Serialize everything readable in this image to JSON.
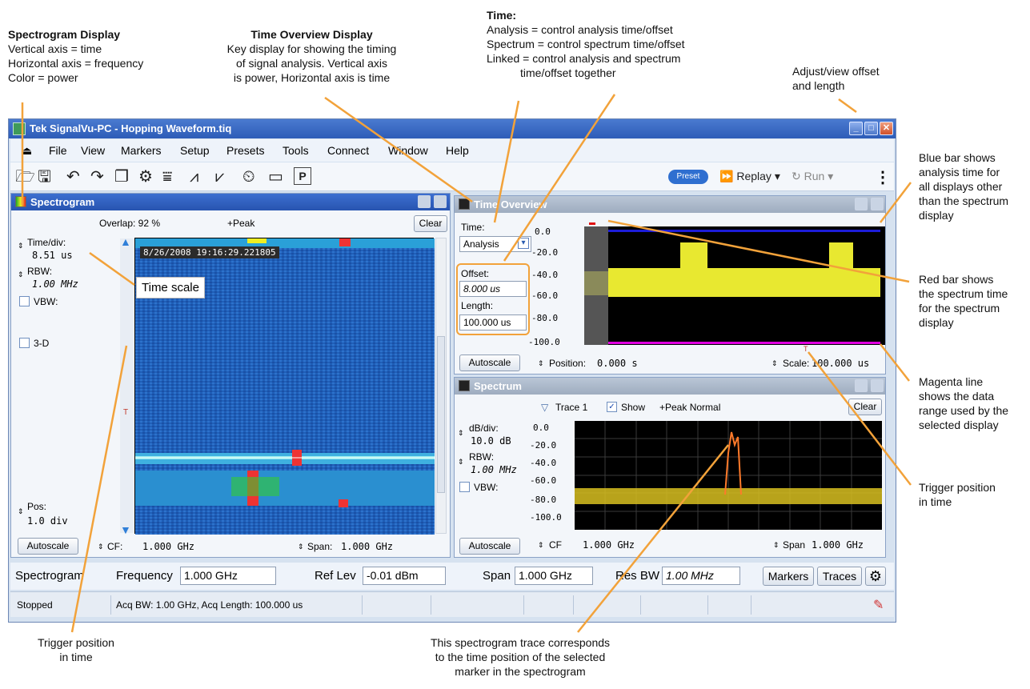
{
  "annotations": {
    "spectrogram_display": {
      "title": "Spectrogram Display",
      "lines": [
        "Vertical axis = time",
        "Horizontal axis = frequency",
        "Color = power"
      ]
    },
    "time_overview_display": {
      "title": "Time Overview Display",
      "lines": [
        "Key display for showing the timing",
        "of signal analysis. Vertical axis",
        "is power, Horizontal axis is time"
      ]
    },
    "time": {
      "title": "Time:",
      "lines": [
        "Analysis = control analysis time/offset",
        "Spectrum = control spectrum time/offset",
        "Linked = control analysis and spectrum"
      ],
      "last_line": "time/offset together"
    },
    "adjust_offset": {
      "lines": [
        "Adjust/view offset",
        "and length"
      ]
    },
    "blue_bar": {
      "lines": [
        "Blue bar shows",
        "analysis time for",
        "all displays other",
        "than the spectrum",
        "display"
      ]
    },
    "red_bar": {
      "lines": [
        "Red bar shows",
        "the spectrum time",
        "for the spectrum",
        "display"
      ]
    },
    "magenta_line": {
      "lines": [
        "Magenta line",
        "shows the data",
        "range used by the",
        "selected display"
      ]
    },
    "trigger_right": {
      "lines": [
        "Trigger position",
        "in time"
      ]
    },
    "trigger_left": {
      "lines": [
        "Trigger position",
        "in time"
      ]
    },
    "spectrogram_trace": {
      "lines": [
        "This spectrogram trace corresponds",
        "to the time position of the selected",
        "marker in the spectrogram"
      ]
    }
  },
  "window": {
    "title": "Tek SignalVu-PC - Hopping Waveform.tiq"
  },
  "menu": [
    "File",
    "View",
    "Markers",
    "Setup",
    "Presets",
    "Tools",
    "Connect",
    "Window",
    "Help"
  ],
  "toolbar": {
    "preset": "Preset",
    "replay": "Replay",
    "run": "Run"
  },
  "spectrogram": {
    "title": "Spectrogram",
    "overlap": "Overlap: 92 %",
    "detection": "+Peak",
    "clear": "Clear",
    "timestamp": "8/26/2008 19:16:29.221805",
    "time_div_label": "Time/div:",
    "time_div_value": "8.51 us",
    "rbw_label": "RBW:",
    "rbw_value": "1.00 MHz",
    "vbw_label": "VBW:",
    "threed_label": "3-D",
    "time_scale": "Time scale",
    "pos_label": "Pos:",
    "pos_value": "1.0 div",
    "autoscale": "Autoscale",
    "cf_label": "CF:",
    "cf_value": "1.000 GHz",
    "span_label": "Span:",
    "span_value": "1.000 GHz",
    "trigger_marker": "T"
  },
  "time_overview": {
    "title": "Time Overview",
    "time_label": "Time:",
    "time_select": "Analysis",
    "offset_label": "Offset:",
    "offset_value": "8.000 us",
    "length_label": "Length:",
    "length_value": "100.000 us",
    "autoscale": "Autoscale",
    "position_label": "Position:",
    "position_value": "0.000 s",
    "scale_label": "Scale:",
    "scale_value": "100.000 us",
    "y_ticks": [
      "0.0",
      "-20.0",
      "-40.0",
      "-60.0",
      "-80.0",
      "-100.0"
    ],
    "trigger_marker": "T",
    "colors": {
      "blue_bar": "#1c1cd8",
      "red_bar": "#e01010",
      "magenta_line": "#e000e0",
      "trace": "#ffff33"
    }
  },
  "spectrum": {
    "title": "Spectrum",
    "trace": "Trace 1",
    "show": "Show",
    "detection": "+Peak Normal",
    "clear": "Clear",
    "db_div_label": "dB/div:",
    "db_div_value": "10.0 dB",
    "rbw_label": "RBW:",
    "rbw_value": "1.00 MHz",
    "vbw_label": "VBW:",
    "autoscale": "Autoscale",
    "cf_label": "CF",
    "cf_value": "1.000 GHz",
    "span_label": "Span",
    "span_value": "1.000 GHz",
    "y_ticks": [
      "0.0",
      "-20.0",
      "-40.0",
      "-60.0",
      "-80.0",
      "-100.0"
    ]
  },
  "bottom_bar": {
    "display": "Spectrogram",
    "frequency_label": "Frequency",
    "frequency_value": "1.000 GHz",
    "ref_lev_label": "Ref Lev",
    "ref_lev_value": "-0.01 dBm",
    "span_label": "Span",
    "span_value": "1.000 GHz",
    "res_bw_label": "Res BW",
    "res_bw_value": "1.00 MHz",
    "markers": "Markers",
    "traces": "Traces"
  },
  "status_bar": {
    "state": "Stopped",
    "acq": "Acq BW: 1.00 GHz, Acq Length: 100.000 us"
  }
}
